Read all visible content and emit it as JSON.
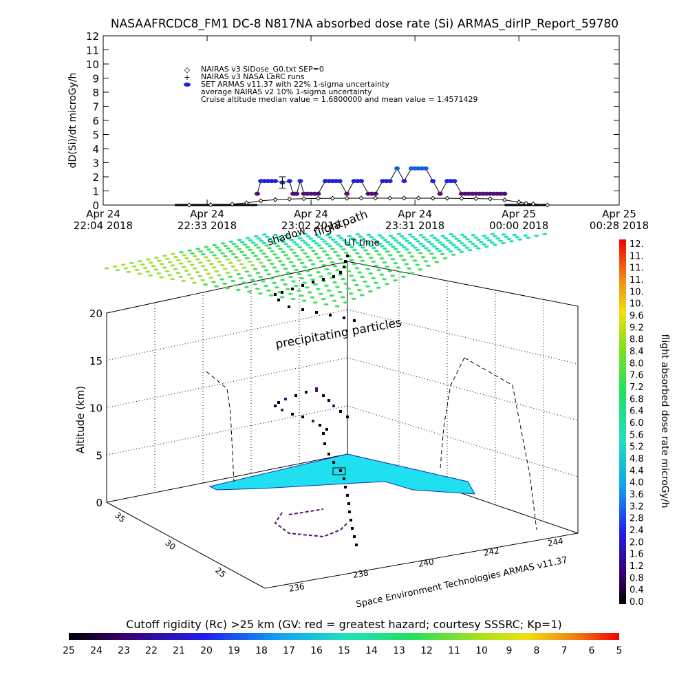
{
  "title": "NASAAFRCDC8_FM1 DC-8    N817NA absorbed dose rate (Si) ARMAS_dirIP_Report_59780",
  "colors": {
    "armas": "#2020e0",
    "armas_high": "#1060e0",
    "nairas": "#000000",
    "purple": "#501070",
    "cyan_surface": "#20e0f0",
    "cloud_teal": "#20e0b0",
    "cloud_green": "#40e060",
    "cloud_yellowgreen": "#a0e040"
  },
  "chart_data": [
    {
      "type": "line",
      "name": "dose-rate-timeseries",
      "ylabel": "dD(Si)/dt microGy/h",
      "ylim": [
        0,
        12
      ],
      "y_ticks": [
        "0",
        "1",
        "2",
        "3",
        "4",
        "5",
        "6",
        "7",
        "8",
        "9",
        "10",
        "11",
        "12"
      ],
      "x_ticks": [
        {
          "l1": "Apr 24",
          "l2": "22:04 2018",
          "t": 0
        },
        {
          "l1": "Apr 24",
          "l2": "22:33 2018",
          "t": 29
        },
        {
          "l1": "Apr 24",
          "l2": "23:02 2018",
          "t": 58
        },
        {
          "l1": "Apr 24",
          "l2": "23:31 2018",
          "t": 87
        },
        {
          "l1": "Apr 25",
          "l2": "00:00 2018",
          "t": 116
        },
        {
          "l1": "Apr 25",
          "l2": "00:28 2018",
          "t": 144
        }
      ],
      "xlim": [
        0,
        144
      ],
      "legend": [
        "NAIRAS v3 SiDose_G0.txt SEP=0",
        "NAIRAS v3 NASA LaRC runs",
        "SET ARMAS v11.37 with 22% 1-sigma uncertainty",
        "average NAIRAS v2 10% 1-sigma uncertainty",
        "Cruise altitude median value = 1.6800000 and mean value = 1.4571429"
      ],
      "series": [
        {
          "name": "NAIRAS v3 SiDose_G0.txt SEP=0",
          "x": [
            24,
            30,
            36,
            40,
            44,
            48,
            52,
            56,
            60,
            64,
            68,
            72,
            76,
            80,
            84,
            88,
            92,
            96,
            100,
            104,
            108,
            112,
            116,
            118,
            120,
            124
          ],
          "y": [
            0.0,
            0.02,
            0.06,
            0.15,
            0.3,
            0.38,
            0.42,
            0.45,
            0.47,
            0.48,
            0.48,
            0.49,
            0.49,
            0.49,
            0.49,
            0.49,
            0.48,
            0.48,
            0.47,
            0.46,
            0.44,
            0.36,
            0.2,
            0.12,
            0.08,
            0.0
          ]
        },
        {
          "name": "SET ARMAS v11.37 with 22% 1-sigma uncertainty",
          "x": [
            43,
            44,
            46,
            48,
            50,
            52,
            53,
            54,
            55,
            56,
            58,
            60,
            62,
            64,
            66,
            68,
            70,
            72,
            74,
            76,
            78,
            80,
            82,
            84,
            86,
            88,
            90,
            92,
            94,
            96,
            98,
            100,
            102,
            104,
            106,
            108,
            110,
            112
          ],
          "y": [
            0.8,
            1.7,
            1.7,
            1.7,
            1.6,
            1.7,
            0.8,
            0.8,
            1.7,
            0.8,
            0.8,
            0.8,
            1.7,
            1.7,
            1.7,
            0.8,
            1.7,
            1.7,
            0.8,
            0.8,
            1.7,
            1.7,
            2.6,
            1.7,
            2.6,
            2.6,
            2.6,
            1.7,
            0.8,
            1.7,
            1.7,
            0.8,
            0.8,
            0.8,
            0.8,
            0.8,
            0.8,
            0.8
          ]
        }
      ],
      "errorbar": {
        "x": 50,
        "y": 1.6,
        "err": 0.4
      }
    },
    {
      "type": "scatter",
      "name": "3d-flightpath",
      "zlabel": "Altitude (km)",
      "z_ticks": [
        "0",
        "5",
        "10",
        "15",
        "20"
      ],
      "x_ticks": [
        "236",
        "238",
        "240",
        "242",
        "244"
      ],
      "y_ticks": [
        "25",
        "30",
        "35"
      ],
      "annotations": [
        "flightpath",
        "shadow",
        "UT time",
        "precipitating particles"
      ],
      "credit": "Space Environment Technologies ARMAS v11.37"
    },
    {
      "type": "heatmap",
      "name": "dose-colorbar",
      "label": "flight absorbed dose rate microGy/h",
      "ticks": [
        "0.0",
        "0.4",
        "0.8",
        "1.2",
        "1.6",
        "2.0",
        "2.4",
        "2.8",
        "3.2",
        "3.6",
        "4.0",
        "4.4",
        "4.8",
        "5.2",
        "5.6",
        "6.0",
        "6.4",
        "6.8",
        "7.2",
        "7.6",
        "8.0",
        "8.4",
        "8.8",
        "9.2",
        "9.6",
        "10.",
        "10.",
        "11.",
        "11.",
        "11.",
        "12."
      ]
    },
    {
      "type": "heatmap",
      "name": "rigidity-colorbar",
      "label": "Cutoff rigidity (Rc) >25 km (GV: red = greatest hazard; courtesy SSSRC; Kp=1)",
      "ticks": [
        "25",
        "24",
        "23",
        "22",
        "21",
        "20",
        "19",
        "18",
        "17",
        "16",
        "15",
        "14",
        "13",
        "12",
        "11",
        "10",
        "9",
        "8",
        "7",
        "6",
        "5"
      ]
    }
  ]
}
